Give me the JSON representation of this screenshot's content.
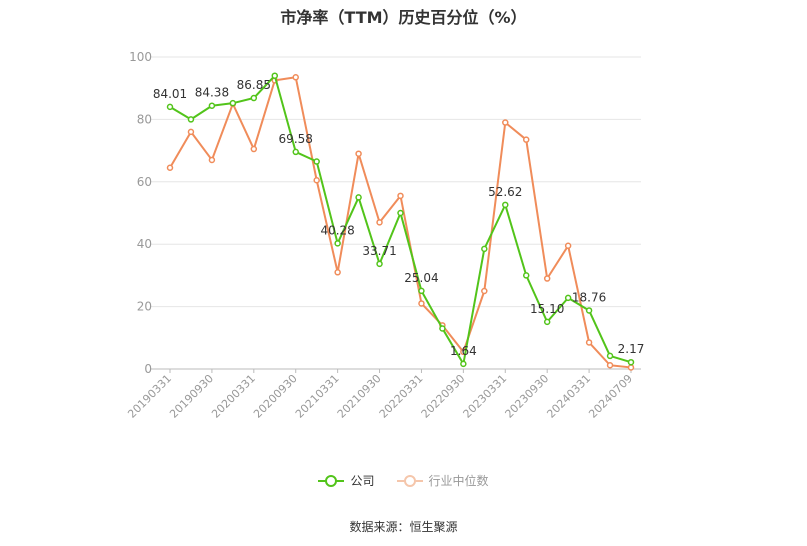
{
  "title": "市净率（TTM）历史百分位（%）",
  "source": "数据来源：恒生聚源",
  "colors": {
    "company": "#52c41a",
    "industry": "#f08c5a",
    "grid": "#e6e6e6",
    "axis": "#999999",
    "text": "#333333"
  },
  "chart_data": {
    "type": "line",
    "title": "市净率（TTM）历史百分位（%）",
    "xlabel": "",
    "ylabel": "",
    "ylim": [
      0,
      100
    ],
    "yticks": [
      0,
      20,
      40,
      60,
      80,
      100
    ],
    "grid": true,
    "legend_position": "bottom",
    "x": [
      "20190331",
      "20190630",
      "20190930",
      "20191231",
      "20200331",
      "20200630",
      "20200930",
      "20201231",
      "20210331",
      "20210630",
      "20210930",
      "20211231",
      "20220331",
      "20220630",
      "20220930",
      "20221231",
      "20230331",
      "20230630",
      "20230930",
      "20231231",
      "20240331",
      "20240630",
      "20240709"
    ],
    "x_tick_labels": [
      "20190331",
      "20190930",
      "20200331",
      "20200930",
      "20210331",
      "20210930",
      "20220331",
      "20220930",
      "20230331",
      "20230930",
      "20240331",
      "20240709"
    ],
    "series": [
      {
        "name": "公司",
        "color": "#52c41a",
        "values": [
          84.01,
          80.0,
          84.38,
          85.2,
          86.85,
          94.0,
          69.58,
          66.5,
          40.28,
          55.0,
          33.71,
          50.0,
          25.04,
          13.0,
          1.64,
          38.5,
          52.62,
          30.0,
          15.1,
          22.8,
          18.76,
          4.2,
          2.17
        ],
        "labels": {
          "0": "84.01",
          "2": "84.38",
          "4": "86.85",
          "6": "69.58",
          "8": "40.28",
          "10": "33.71",
          "12": "25.04",
          "14": "1.64",
          "16": "52.62",
          "18": "15.10",
          "20": "18.76",
          "22": "2.17"
        }
      },
      {
        "name": "行业中位数",
        "color": "#f08c5a",
        "values": [
          64.5,
          76.0,
          67.0,
          85.0,
          70.5,
          92.5,
          93.5,
          60.5,
          31.0,
          69.0,
          47.0,
          55.5,
          21.0,
          14.0,
          5.5,
          25.0,
          79.0,
          73.5,
          29.0,
          39.5,
          8.5,
          1.2,
          0.5
        ]
      }
    ]
  }
}
